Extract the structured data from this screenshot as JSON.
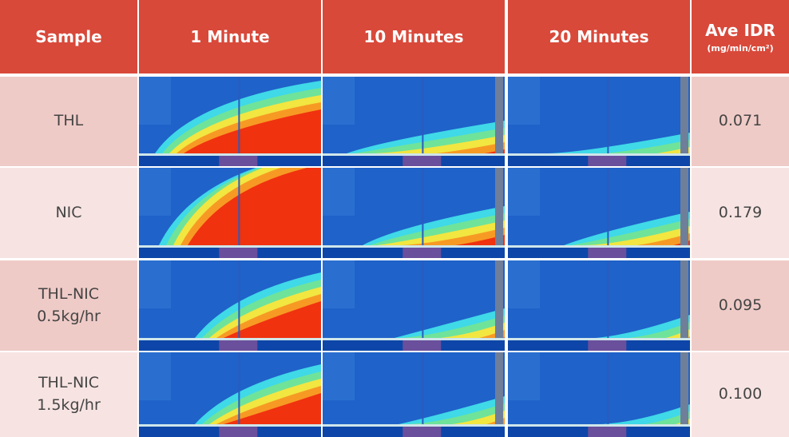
{
  "header": {
    "sample": "Sample",
    "times": [
      "1 Minute",
      "10 Minutes",
      "20 Minutes"
    ],
    "idr": "Ave IDR",
    "idr_unit": "(mg/min/cm²)"
  },
  "rows": [
    {
      "sample": [
        "THL"
      ],
      "idr": "0.071"
    },
    {
      "sample": [
        "NIC"
      ],
      "idr": "0.179"
    },
    {
      "sample": [
        "THL-NIC",
        "0.5kg/hr"
      ],
      "idr": "0.095"
    },
    {
      "sample": [
        "THL-NIC",
        "1.5kg/hr"
      ],
      "idr": "0.100"
    }
  ]
}
